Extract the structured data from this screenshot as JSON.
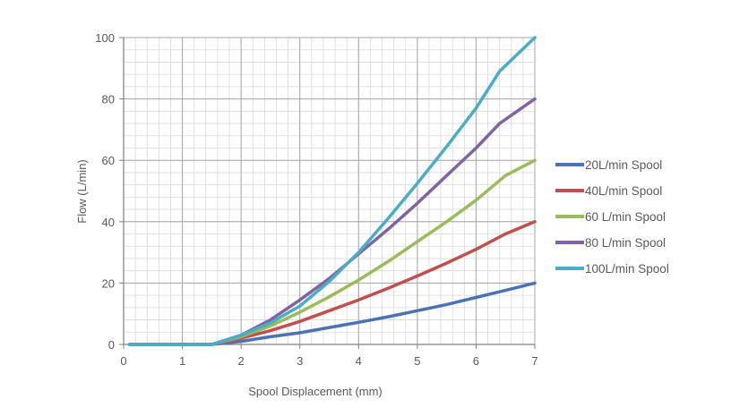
{
  "chart_data": {
    "type": "line",
    "title": "",
    "xlabel": "Spool Displacement (mm)",
    "ylabel": "Flow (L/min)",
    "xlim": [
      0,
      7
    ],
    "ylim": [
      0,
      100
    ],
    "x_ticks": [
      "0",
      "1",
      "2",
      "3",
      "4",
      "5",
      "6",
      "7"
    ],
    "y_ticks": [
      "0",
      "20",
      "40",
      "60",
      "80",
      "100"
    ],
    "grid": true,
    "legend_position": "right",
    "series": [
      {
        "name": "20L/min Spool",
        "color": "#4a72b5",
        "x": [
          0.1,
          1.5,
          2.0,
          2.5,
          3.0,
          3.5,
          4.0,
          4.5,
          5.0,
          5.5,
          6.0,
          6.5,
          7.0
        ],
        "y": [
          0,
          0,
          1,
          2.5,
          3.8,
          5.5,
          7.2,
          9,
          11,
          13,
          15.3,
          17.6,
          20
        ]
      },
      {
        "name": "40L/min Spool",
        "color": "#c0504d",
        "x": [
          0.1,
          1.5,
          2.0,
          2.5,
          3.0,
          3.5,
          4.0,
          4.5,
          5.0,
          5.5,
          6.0,
          6.5,
          7.0
        ],
        "y": [
          0,
          0,
          2,
          4.5,
          7.5,
          11,
          14.5,
          18.3,
          22.3,
          26.5,
          31,
          36,
          40
        ]
      },
      {
        "name": "60 L/min Spool",
        "color": "#9bbb59",
        "x": [
          0.1,
          1.5,
          2.0,
          2.5,
          3.0,
          3.5,
          4.0,
          4.5,
          5.0,
          5.5,
          6.0,
          6.5,
          7.0
        ],
        "y": [
          0,
          0,
          2.5,
          6,
          10.5,
          15.5,
          21,
          27,
          33.5,
          40,
          47,
          55,
          60
        ]
      },
      {
        "name": "80 L/min Spool",
        "color": "#8064a2",
        "x": [
          0.1,
          1.5,
          2.0,
          2.5,
          3.0,
          3.5,
          4.0,
          4.5,
          5.0,
          5.5,
          6.0,
          6.4,
          7.0
        ],
        "y": [
          0,
          0,
          3,
          8,
          14.5,
          21.5,
          29.5,
          37.5,
          46,
          55,
          64,
          72,
          80
        ]
      },
      {
        "name": "100L/min Spool",
        "color": "#4bacc6",
        "x": [
          0.1,
          1.5,
          2.0,
          2.5,
          3.0,
          3.5,
          4.0,
          4.5,
          5.0,
          5.5,
          6.0,
          6.4,
          7.0
        ],
        "y": [
          0,
          0,
          3,
          7,
          12.5,
          20.5,
          30,
          41,
          52.5,
          64.5,
          77,
          89,
          100
        ]
      }
    ]
  }
}
